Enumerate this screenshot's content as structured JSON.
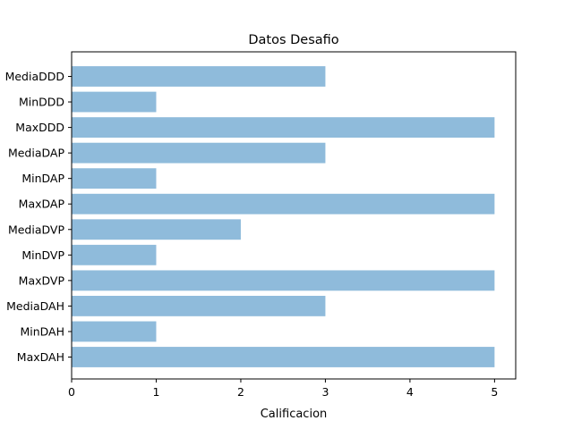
{
  "chart_data": {
    "type": "bar",
    "orientation": "horizontal",
    "title": "Datos Desafio",
    "xlabel": "Calificacion",
    "ylabel": "",
    "categories": [
      "MediaDDD",
      "MinDDD",
      "MaxDDD",
      "MediaDAP",
      "MinDAP",
      "MaxDAP",
      "MediaDVP",
      "MinDVP",
      "MaxDVP",
      "MediaDAH",
      "MinDAH",
      "MaxDAH"
    ],
    "values": [
      3,
      1,
      5,
      3,
      1,
      5,
      2,
      1,
      5,
      3,
      1,
      5
    ],
    "xlim": [
      0,
      5.25
    ],
    "xticks": [
      0,
      1,
      2,
      3,
      4,
      5
    ],
    "bar_color": "#8fbbdb",
    "grid": false,
    "legend": "none"
  }
}
